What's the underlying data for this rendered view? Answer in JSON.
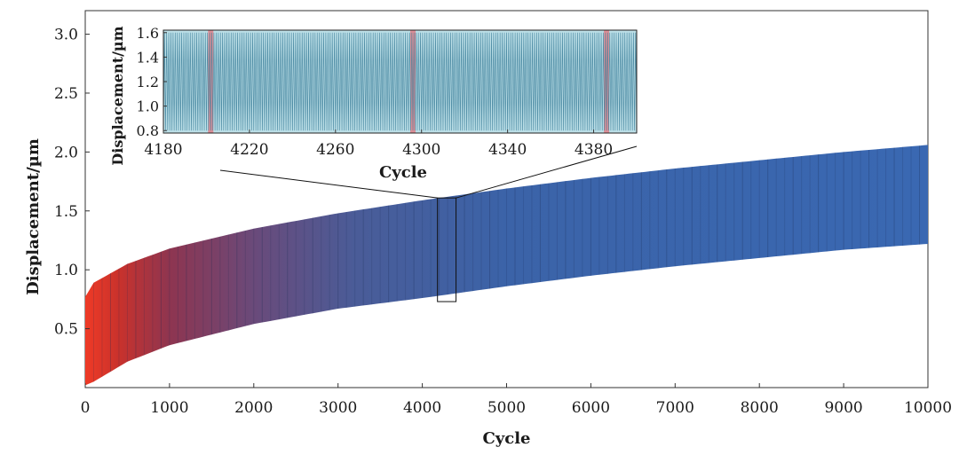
{
  "chart_data": [
    {
      "id": "main",
      "type": "area",
      "xlabel": "Cycle",
      "ylabel": "Displacement/µm",
      "xlim": [
        0,
        10000
      ],
      "ylim": [
        0,
        3.2
      ],
      "xticks": [
        0,
        1000,
        2000,
        3000,
        4000,
        5000,
        6000,
        7000,
        8000,
        9000,
        10000
      ],
      "xtick_labels": [
        "0",
        "1000",
        "2000",
        "3000",
        "4000",
        "5000",
        "6000",
        "7000",
        "8000",
        "9000",
        "10000"
      ],
      "yticks": [
        0.5,
        1.0,
        1.5,
        2.0,
        2.5,
        3.0
      ],
      "ytick_labels": [
        "0.5",
        "1.0",
        "1.5",
        "2.0",
        "2.5",
        "3.0"
      ],
      "upper_envelope": {
        "x": [
          0,
          100,
          500,
          1000,
          2000,
          3000,
          4000,
          5000,
          6000,
          7000,
          8000,
          9000,
          10000
        ],
        "y": [
          0.77,
          0.89,
          1.05,
          1.18,
          1.35,
          1.48,
          1.59,
          1.69,
          1.78,
          1.86,
          1.93,
          2.0,
          2.06
        ]
      },
      "lower_envelope": {
        "x": [
          0,
          100,
          500,
          1000,
          2000,
          3000,
          4000,
          5000,
          6000,
          7000,
          8000,
          9000,
          10000
        ],
        "y": [
          0.02,
          0.05,
          0.22,
          0.36,
          0.54,
          0.67,
          0.76,
          0.86,
          0.95,
          1.03,
          1.1,
          1.17,
          1.22
        ]
      },
      "color_start": "#e8321f",
      "color_end": "#3a66ad",
      "zoom_box": {
        "x_range": [
          4180,
          4400
        ],
        "y_range": [
          0.73,
          1.61
        ]
      }
    },
    {
      "id": "inset",
      "type": "line",
      "xlabel": "Cycle",
      "ylabel": "Displacement/µm",
      "xlim": [
        4180,
        4400
      ],
      "ylim": [
        0.78,
        1.62
      ],
      "xticks": [
        4180,
        4220,
        4260,
        4300,
        4340,
        4380
      ],
      "xtick_labels": [
        "4180",
        "4220",
        "4260",
        "4300",
        "4340",
        "4380"
      ],
      "yticks": [
        0.8,
        1.0,
        1.2,
        1.4,
        1.6
      ],
      "ytick_labels": [
        "0.8",
        "1.0",
        "1.2",
        "1.4",
        "1.6"
      ],
      "oscillation_upper": 1.6,
      "oscillation_lower": 0.8,
      "background_color": "#bde0e8",
      "line_color": "#3d7f9a",
      "highlight_color": "#e8747c",
      "highlight_cycles": [
        4202,
        4296,
        4386
      ]
    }
  ]
}
